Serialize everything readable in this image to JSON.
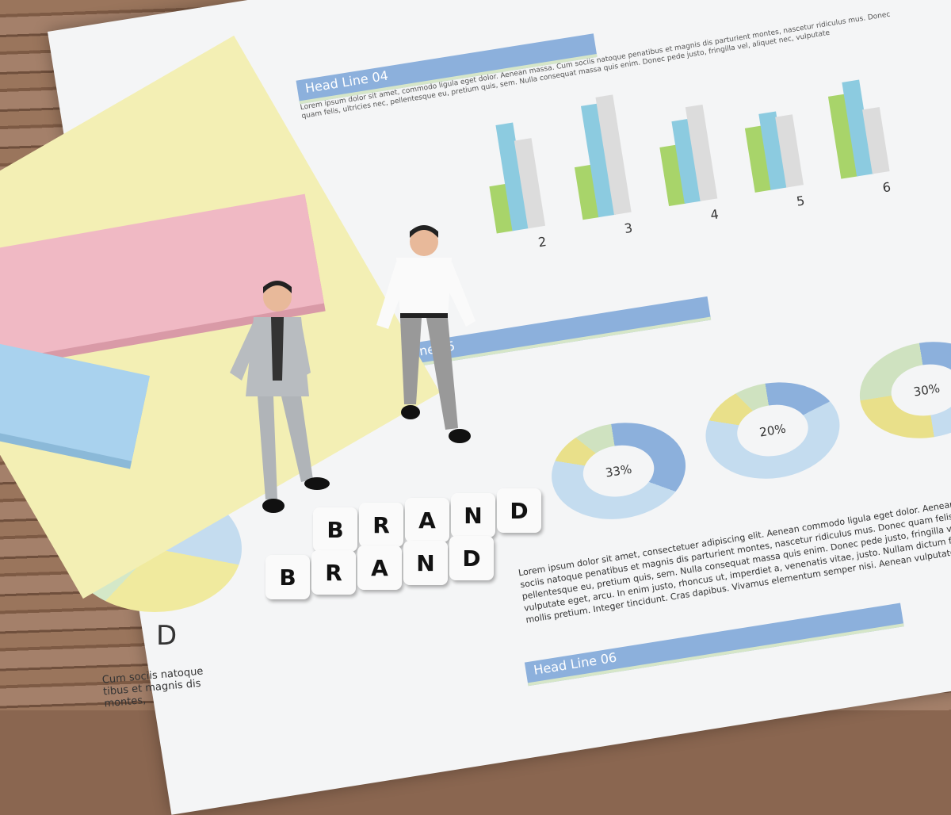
{
  "sheet": {
    "headlines": [
      "Head Line 04",
      "Head Line 05",
      "Head Line 06"
    ],
    "bar_numbers": [
      "2",
      "3",
      "4",
      "5",
      "6"
    ],
    "percentages": [
      "33%",
      "20%",
      "30%"
    ],
    "pie_label": "D",
    "pie_caption": "Cum sociis natoque\ntibus et magnis dis\nmontes,",
    "paragraph": "Lorem ipsum dolor sit amet, consectetuer adipiscing elit. Aenean commodo ligula eget dolor. Aenean massa. Cum sociis natoque penatibus et magnis dis parturient montes, nascetur ridiculus mus. Donec quam felis, ultricies nec, pellentesque eu, pretium quis, sem. Nulla consequat massa quis enim. Donec pede justo, fringilla vel, aliquet nec, vulputate eget, arcu. In enim justo, rhoncus ut, imperdiet a, venenatis vitae, justo. Nullam dictum felis eu pede mollis pretium. Integer tincidunt. Cras dapibus. Vivamus elementum semper nisi. Aenean vulputate",
    "top_text": "Lorem ipsum dolor sit amet, commodo ligula eget dolor. Aenean massa. Cum sociis natoque penatibus et magnis dis parturient montes, nascetur ridiculus mus. Donec quam felis, ultricies nec, pellentesque eu, pretium quis, sem. Nulla consequat massa quis enim. Donec pede justo, fringilla vel, aliquet nec, vulputate"
  },
  "blocks": {
    "row1": [
      "B",
      "R",
      "A",
      "N",
      "D"
    ],
    "row2": [
      "B",
      "R",
      "A",
      "N",
      "D"
    ]
  },
  "colors": {
    "green": "#a8d46a",
    "teal": "#8ccbe0",
    "gray": "#dcdcdc",
    "blue": "#8cb0dc",
    "yellow": "#f3efb4",
    "pink": "#f0b9c4"
  }
}
